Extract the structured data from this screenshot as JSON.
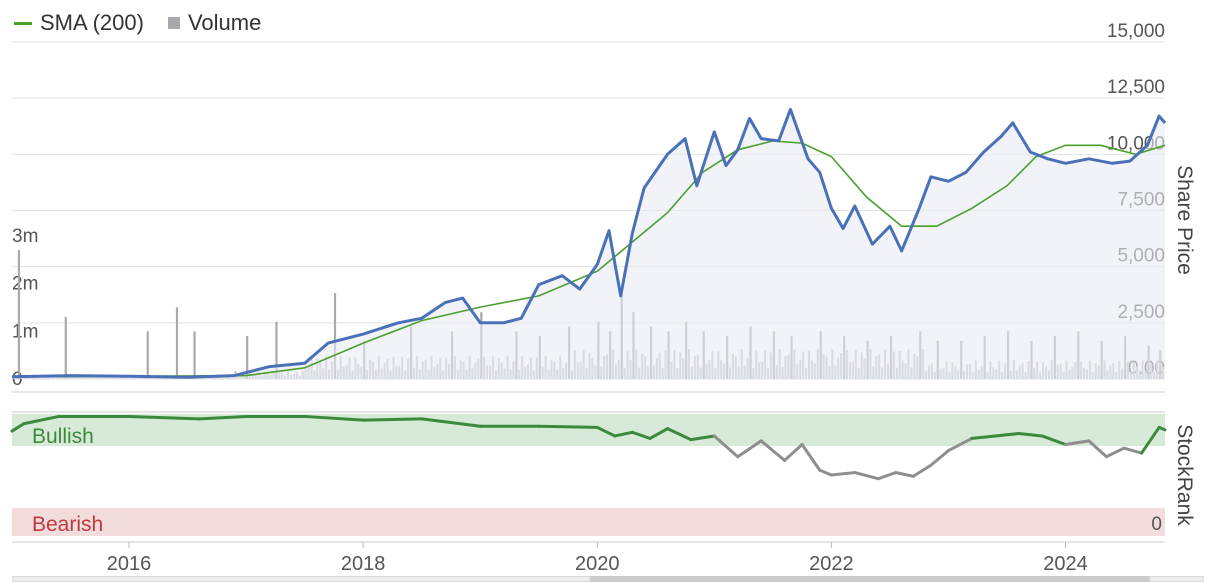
{
  "legend": {
    "sma_label": "SMA (200)",
    "volume_label": "Volume"
  },
  "chart_data": [
    {
      "type": "line",
      "ylabel": "Share Price",
      "ylim": [
        0,
        15000
      ],
      "y_ticks": [
        "0.00",
        "2,500",
        "5,000",
        "7,500",
        "10,000",
        "12,500",
        "15,000"
      ],
      "x_ticks": [
        "2016",
        "2018",
        "2020",
        "2022",
        "2024"
      ],
      "xlim": [
        2015.0,
        2024.85
      ],
      "grid": true,
      "series": [
        {
          "name": "Share Price",
          "color": "#4a70b8",
          "x": [
            2015.0,
            2015.5,
            2016.0,
            2016.5,
            2016.9,
            2017.2,
            2017.5,
            2017.7,
            2018.0,
            2018.3,
            2018.5,
            2018.7,
            2018.85,
            2019.0,
            2019.2,
            2019.35,
            2019.5,
            2019.7,
            2019.85,
            2020.0,
            2020.1,
            2020.2,
            2020.3,
            2020.4,
            2020.6,
            2020.75,
            2020.85,
            2021.0,
            2021.1,
            2021.2,
            2021.3,
            2021.4,
            2021.55,
            2021.65,
            2021.8,
            2021.9,
            2022.0,
            2022.1,
            2022.2,
            2022.35,
            2022.5,
            2022.6,
            2022.75,
            2022.85,
            2023.0,
            2023.15,
            2023.3,
            2023.45,
            2023.55,
            2023.7,
            2023.85,
            2024.0,
            2024.2,
            2024.4,
            2024.55,
            2024.7,
            2024.8,
            2024.85
          ],
          "y": [
            100,
            150,
            120,
            80,
            150,
            550,
            700,
            1600,
            2000,
            2500,
            2700,
            3400,
            3600,
            2500,
            2500,
            2700,
            4200,
            4600,
            4000,
            5100,
            6600,
            3700,
            6500,
            8500,
            10000,
            10700,
            8600,
            11000,
            9500,
            10200,
            11600,
            10700,
            10600,
            12000,
            9800,
            9200,
            7600,
            6700,
            7700,
            6000,
            6800,
            5700,
            7600,
            9000,
            8800,
            9200,
            10100,
            10800,
            11400,
            10100,
            9800,
            9600,
            9800,
            9600,
            9700,
            10400,
            11700,
            11400
          ]
        },
        {
          "name": "SMA (200)",
          "color": "#4aa02c",
          "x": [
            2015.0,
            2016.0,
            2017.0,
            2017.5,
            2018.0,
            2018.5,
            2019.0,
            2019.5,
            2020.0,
            2020.3,
            2020.6,
            2020.9,
            2021.2,
            2021.5,
            2021.75,
            2022.0,
            2022.3,
            2022.6,
            2022.9,
            2023.2,
            2023.5,
            2023.75,
            2024.0,
            2024.3,
            2024.6,
            2024.85
          ],
          "y": [
            100,
            120,
            150,
            500,
            1600,
            2600,
            3200,
            3700,
            4800,
            6100,
            7400,
            9200,
            10200,
            10600,
            10500,
            9900,
            8100,
            6800,
            6800,
            7600,
            8600,
            9900,
            10400,
            10400,
            10000,
            10400
          ]
        }
      ]
    },
    {
      "type": "bar",
      "name": "Volume",
      "ylim": [
        0,
        3500000
      ],
      "y_ticks": [
        "0",
        "1m",
        "2m",
        "3m"
      ],
      "color": "#a9a9ad",
      "x": [
        2015.05,
        2015.45,
        2016.15,
        2016.4,
        2016.55,
        2017.0,
        2017.25,
        2017.75,
        2018.0,
        2018.4,
        2018.75,
        2019.0,
        2019.3,
        2019.5,
        2019.75,
        2020.0,
        2020.1,
        2020.2,
        2020.3,
        2020.45,
        2020.6,
        2020.75,
        2020.9,
        2021.1,
        2021.3,
        2021.5,
        2021.65,
        2021.9,
        2022.1,
        2022.3,
        2022.5,
        2022.75,
        2022.9,
        2023.1,
        2023.3,
        2023.5,
        2023.7,
        2023.9,
        2024.1,
        2024.3,
        2024.5,
        2024.7,
        2024.8
      ],
      "values": [
        2700000,
        1300000,
        1000000,
        1500000,
        1000000,
        900000,
        1200000,
        1800000,
        800000,
        1100000,
        1000000,
        1400000,
        1000000,
        900000,
        1100000,
        1200000,
        1000000,
        1800000,
        1400000,
        1100000,
        1000000,
        1200000,
        1000000,
        900000,
        1100000,
        1000000,
        900000,
        1000000,
        900000,
        800000,
        900000,
        1000000,
        800000,
        800000,
        900000,
        1000000,
        800000,
        900000,
        1000000,
        800000,
        900000,
        700000,
        600000
      ]
    },
    {
      "type": "area",
      "name": "StockRank",
      "ylabel": "StockRank",
      "ylim": [
        0,
        100
      ],
      "bands": [
        {
          "label": "Bullish",
          "from": 80,
          "to": 100
        },
        {
          "label": "Bearish",
          "from": 0,
          "to": 8
        }
      ],
      "y_ticks": [
        "0"
      ],
      "x": [
        2015.0,
        2015.1,
        2015.4,
        2016.0,
        2016.6,
        2017.0,
        2017.5,
        2018.0,
        2018.5,
        2019.0,
        2019.5,
        2020.0,
        2020.15,
        2020.3,
        2020.45,
        2020.6,
        2020.8,
        2021.0,
        2021.2,
        2021.4,
        2021.6,
        2021.75,
        2021.9,
        2022.0,
        2022.2,
        2022.4,
        2022.55,
        2022.7,
        2022.85,
        2023.0,
        2023.2,
        2023.4,
        2023.6,
        2023.8,
        2024.0,
        2024.2,
        2024.35,
        2024.5,
        2024.65,
        2024.8,
        2024.85
      ],
      "values": [
        86,
        92,
        98,
        98,
        96,
        98,
        98,
        95,
        96,
        90,
        90,
        89,
        82,
        85,
        80,
        88,
        79,
        82,
        65,
        78,
        62,
        75,
        54,
        50,
        52,
        47,
        52,
        49,
        58,
        70,
        80,
        82,
        84,
        82,
        75,
        78,
        65,
        72,
        68,
        89,
        87
      ],
      "colors": {
        "bullish": "#3b8a3b",
        "neutral": "#8e8e8e"
      }
    }
  ]
}
